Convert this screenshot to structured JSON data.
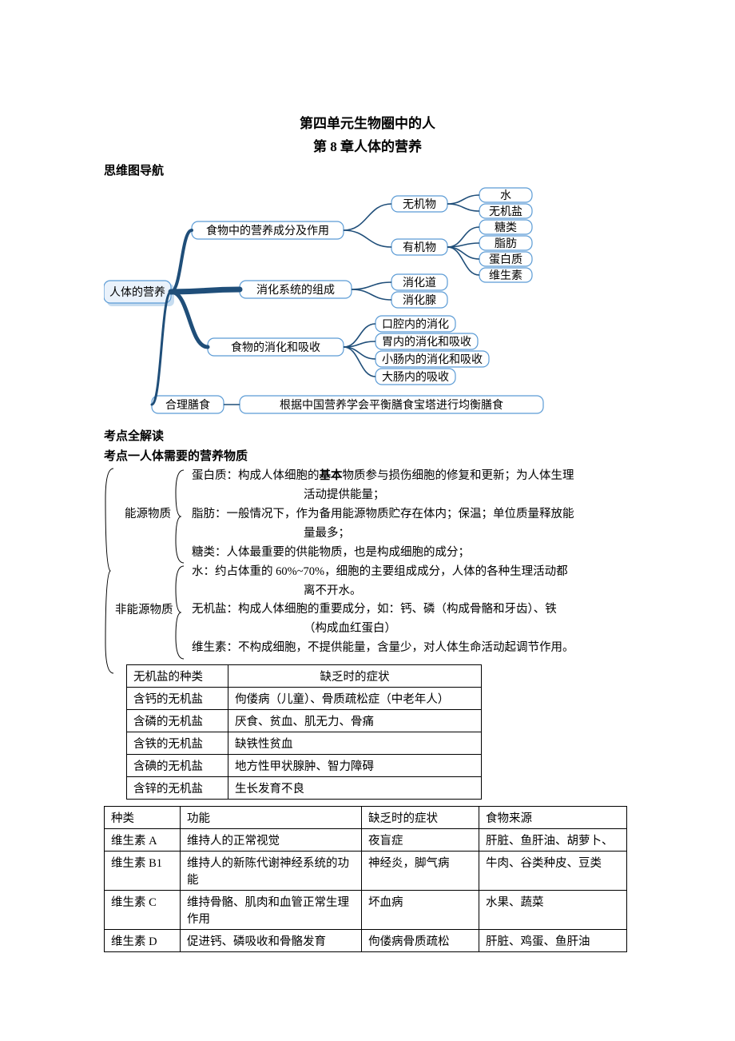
{
  "colors": {
    "text": "#000000",
    "bg": "#ffffff",
    "node_border": "#5b9bd5",
    "node_fill": "#ffffff",
    "root_fill": "#eaf2fb",
    "root_shadow": "#5b9bd5",
    "edge": "#1f4e79"
  },
  "titles": {
    "main": "第四单元生物圈中的人",
    "sub": "第 8 章人体的营养"
  },
  "headings": {
    "mindmap": "思维图导航",
    "kp_all": "考点全解读",
    "kp1": "考点一人体需要的营养物质"
  },
  "mindmap": {
    "root": "人体的营养",
    "branches": [
      {
        "label": "食物中的营养成分及作用",
        "children": [
          {
            "label": "无机物",
            "children": [
              {
                "label": "水"
              },
              {
                "label": "无机盐"
              }
            ]
          },
          {
            "label": "有机物",
            "children": [
              {
                "label": "糖类"
              },
              {
                "label": "脂肪"
              },
              {
                "label": "蛋白质"
              },
              {
                "label": "维生素"
              }
            ]
          }
        ]
      },
      {
        "label": "消化系统的组成",
        "children": [
          {
            "label": "消化道"
          },
          {
            "label": "消化腺"
          }
        ]
      },
      {
        "label": "食物的消化和吸收",
        "children": [
          {
            "label": "口腔内的消化"
          },
          {
            "label": "胃内的消化和吸收"
          },
          {
            "label": "小肠内的消化和吸收"
          },
          {
            "label": "大肠内的吸收"
          }
        ]
      },
      {
        "label": "合理膳食",
        "tail": "根据中国营养学会平衡膳食宝塔进行均衡膳食"
      }
    ]
  },
  "bracket": {
    "group1_label": "能源物质",
    "group2_label": "非能源物质",
    "g1": [
      "蛋白质：构成人体细胞的基本物质参与损伤细胞的修复和更新；为人体生理",
      "活动提供能量；",
      "脂肪：一般情况下，作为备用能源物质贮存在体内；保温；单位质量释放能",
      "量最多；",
      "糖类：人体最重要的供能物质，也是构成细胞的成分；"
    ],
    "bold_word": "基本",
    "g2": [
      "水：约占体重的 60%~70%，细胞的主要组成成分，人体的各种生理活动都",
      "离不开水。",
      "无机盐：构成人体细胞的重要成分，如：钙、磷（构成骨骼和牙齿）、铁",
      "（构成血红蛋白）",
      "维生素：不构成细胞，不提供能量，含量少，对人体生命活动起调节作用。"
    ]
  },
  "table1": {
    "header": [
      "无机盐的种类",
      "缺乏时的症状"
    ],
    "rows": [
      [
        "含钙的无机盐",
        "佝偻病（儿童）、骨质疏松症（中老年人）"
      ],
      [
        "含磷的无机盐",
        "厌食、贫血、肌无力、骨痛"
      ],
      [
        "含铁的无机盐",
        "缺铁性贫血"
      ],
      [
        "含碘的无机盐",
        "地方性甲状腺肿、智力障碍"
      ],
      [
        "含锌的无机盐",
        "生长发育不良"
      ]
    ]
  },
  "table2": {
    "header": [
      "种类",
      "功能",
      "缺乏时的症状",
      "食物来源"
    ],
    "rows": [
      [
        "维生素 A",
        "维持人的正常视觉",
        "夜盲症",
        "肝脏、鱼肝油、胡萝卜、"
      ],
      [
        "维生素 B1",
        "维持人的新陈代谢神经系统的功能",
        "神经炎，脚气病",
        "牛肉、谷类种皮、豆类"
      ],
      [
        "维生素 C",
        "维持骨骼、肌肉和血管正常生理作用",
        "坏血病",
        "水果、蔬菜"
      ],
      [
        "维生素 D",
        "促进钙、磷吸收和骨骼发育",
        "佝偻病骨质疏松",
        "肝脏、鸡蛋、鱼肝油"
      ]
    ]
  }
}
